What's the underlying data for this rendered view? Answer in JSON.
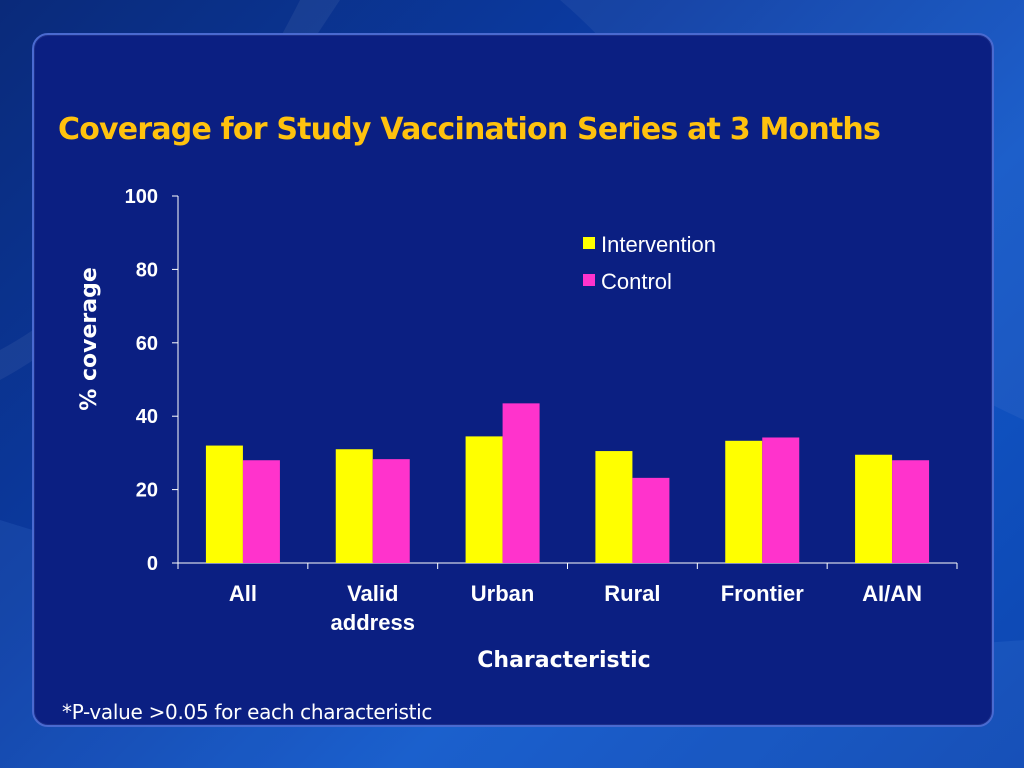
{
  "slide": {
    "title": "Coverage for Study Vaccination Series at 3 Months",
    "footnote": "*P-value >0.05 for each characteristic"
  },
  "colors": {
    "intervention": "#ffff00",
    "control": "#ff33cc",
    "title": "#ffc20e",
    "text": "#ffffff",
    "panel": "#0b1f82"
  },
  "chart_data": {
    "type": "bar",
    "xlabel": "Characteristic",
    "ylabel": "% coverage",
    "ylim": [
      0,
      100
    ],
    "yticks": [
      0,
      20,
      40,
      60,
      80,
      100
    ],
    "grid": false,
    "legend_position": "top-right",
    "categories": [
      [
        "All"
      ],
      [
        "Valid",
        "address"
      ],
      [
        "Urban"
      ],
      [
        "Rural"
      ],
      [
        "Frontier"
      ],
      [
        "AI/AN"
      ]
    ],
    "series": [
      {
        "name": "Intervention",
        "color": "#ffff00",
        "values": [
          32,
          31,
          34.5,
          30.5,
          33.3,
          29.5
        ]
      },
      {
        "name": "Control",
        "color": "#ff33cc",
        "values": [
          28,
          28.3,
          43.5,
          23.2,
          34.2,
          28
        ]
      }
    ]
  }
}
